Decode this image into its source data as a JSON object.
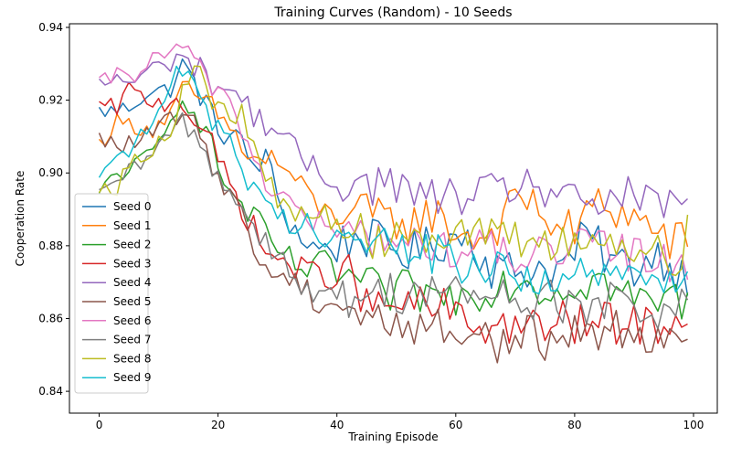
{
  "chart_data": {
    "type": "line",
    "title": "Training Curves (Random) - 10 Seeds",
    "xlabel": "Training Episode",
    "ylabel": "Cooperation Rate",
    "xlim": [
      -5,
      104
    ],
    "ylim": [
      0.834,
      0.941
    ],
    "xticks": [
      0,
      20,
      40,
      60,
      80,
      100
    ],
    "yticks": [
      0.84,
      0.86,
      0.88,
      0.9,
      0.92,
      0.94
    ],
    "xtick_labels": [
      "0",
      "20",
      "40",
      "60",
      "80",
      "100"
    ],
    "ytick_labels": [
      "0.84",
      "0.86",
      "0.88",
      "0.90",
      "0.92",
      "0.94"
    ],
    "grid": false,
    "legend_position": "lower-left",
    "x_start": 0,
    "x_step": 1,
    "series": [
      {
        "name": "Seed 0",
        "color": "#1f77b4",
        "anchors": [
          [
            0,
            0.917
          ],
          [
            2,
            0.917
          ],
          [
            5,
            0.918
          ],
          [
            8,
            0.922
          ],
          [
            12,
            0.923
          ],
          [
            14,
            0.93
          ],
          [
            17,
            0.922
          ],
          [
            20,
            0.912
          ],
          [
            23,
            0.91
          ],
          [
            26,
            0.902
          ],
          [
            28,
            0.904
          ],
          [
            31,
            0.889
          ],
          [
            34,
            0.882
          ],
          [
            37,
            0.879
          ],
          [
            40,
            0.88
          ],
          [
            44,
            0.883
          ],
          [
            48,
            0.88
          ],
          [
            52,
            0.878
          ],
          [
            56,
            0.88
          ],
          [
            59,
            0.882
          ],
          [
            62,
            0.883
          ],
          [
            66,
            0.874
          ],
          [
            70,
            0.873
          ],
          [
            74,
            0.874
          ],
          [
            78,
            0.874
          ],
          [
            82,
            0.883
          ],
          [
            86,
            0.876
          ],
          [
            90,
            0.874
          ],
          [
            94,
            0.878
          ],
          [
            97,
            0.873
          ],
          [
            99,
            0.872
          ]
        ]
      },
      {
        "name": "Seed 1",
        "color": "#ff7f0e",
        "anchors": [
          [
            0,
            0.908
          ],
          [
            3,
            0.914
          ],
          [
            6,
            0.913
          ],
          [
            9,
            0.912
          ],
          [
            12,
            0.916
          ],
          [
            14,
            0.923
          ],
          [
            17,
            0.92
          ],
          [
            20,
            0.916
          ],
          [
            23,
            0.91
          ],
          [
            26,
            0.903
          ],
          [
            29,
            0.904
          ],
          [
            32,
            0.9
          ],
          [
            35,
            0.894
          ],
          [
            38,
            0.889
          ],
          [
            41,
            0.89
          ],
          [
            44,
            0.889
          ],
          [
            48,
            0.887
          ],
          [
            52,
            0.886
          ],
          [
            56,
            0.889
          ],
          [
            60,
            0.884
          ],
          [
            64,
            0.882
          ],
          [
            68,
            0.887
          ],
          [
            71,
            0.894
          ],
          [
            74,
            0.89
          ],
          [
            77,
            0.885
          ],
          [
            80,
            0.884
          ],
          [
            84,
            0.892
          ],
          [
            88,
            0.889
          ],
          [
            92,
            0.886
          ],
          [
            96,
            0.881
          ],
          [
            99,
            0.881
          ]
        ]
      },
      {
        "name": "Seed 2",
        "color": "#2ca02c",
        "anchors": [
          [
            0,
            0.893
          ],
          [
            2,
            0.899
          ],
          [
            5,
            0.901
          ],
          [
            8,
            0.904
          ],
          [
            11,
            0.91
          ],
          [
            14,
            0.922
          ],
          [
            17,
            0.915
          ],
          [
            20,
            0.902
          ],
          [
            23,
            0.892
          ],
          [
            26,
            0.888
          ],
          [
            29,
            0.88
          ],
          [
            32,
            0.876
          ],
          [
            35,
            0.873
          ],
          [
            38,
            0.875
          ],
          [
            41,
            0.872
          ],
          [
            44,
            0.87
          ],
          [
            48,
            0.866
          ],
          [
            52,
            0.868
          ],
          [
            56,
            0.866
          ],
          [
            60,
            0.866
          ],
          [
            64,
            0.868
          ],
          [
            68,
            0.87
          ],
          [
            72,
            0.871
          ],
          [
            76,
            0.867
          ],
          [
            80,
            0.87
          ],
          [
            84,
            0.871
          ],
          [
            88,
            0.867
          ],
          [
            92,
            0.864
          ],
          [
            96,
            0.866
          ],
          [
            99,
            0.864
          ]
        ]
      },
      {
        "name": "Seed 3",
        "color": "#d62728",
        "anchors": [
          [
            0,
            0.918
          ],
          [
            3,
            0.918
          ],
          [
            5,
            0.923
          ],
          [
            8,
            0.92
          ],
          [
            11,
            0.919
          ],
          [
            13,
            0.921
          ],
          [
            16,
            0.915
          ],
          [
            19,
            0.907
          ],
          [
            22,
            0.897
          ],
          [
            25,
            0.888
          ],
          [
            28,
            0.878
          ],
          [
            31,
            0.876
          ],
          [
            34,
            0.873
          ],
          [
            38,
            0.872
          ],
          [
            42,
            0.872
          ],
          [
            46,
            0.862
          ],
          [
            50,
            0.864
          ],
          [
            54,
            0.863
          ],
          [
            58,
            0.863
          ],
          [
            62,
            0.858
          ],
          [
            66,
            0.858
          ],
          [
            70,
            0.858
          ],
          [
            74,
            0.857
          ],
          [
            78,
            0.859
          ],
          [
            82,
            0.858
          ],
          [
            86,
            0.859
          ],
          [
            90,
            0.858
          ],
          [
            94,
            0.859
          ],
          [
            97,
            0.858
          ],
          [
            99,
            0.863
          ]
        ]
      },
      {
        "name": "Seed 4",
        "color": "#9467bd",
        "anchors": [
          [
            0,
            0.924
          ],
          [
            3,
            0.926
          ],
          [
            6,
            0.925
          ],
          [
            9,
            0.929
          ],
          [
            12,
            0.93
          ],
          [
            14,
            0.933
          ],
          [
            17,
            0.928
          ],
          [
            20,
            0.924
          ],
          [
            23,
            0.922
          ],
          [
            26,
            0.916
          ],
          [
            29,
            0.913
          ],
          [
            32,
            0.908
          ],
          [
            35,
            0.902
          ],
          [
            38,
            0.899
          ],
          [
            42,
            0.897
          ],
          [
            46,
            0.897
          ],
          [
            50,
            0.897
          ],
          [
            54,
            0.893
          ],
          [
            58,
            0.893
          ],
          [
            61,
            0.894
          ],
          [
            64,
            0.893
          ],
          [
            68,
            0.895
          ],
          [
            71,
            0.898
          ],
          [
            74,
            0.896
          ],
          [
            77,
            0.894
          ],
          [
            80,
            0.891
          ],
          [
            84,
            0.892
          ],
          [
            88,
            0.894
          ],
          [
            92,
            0.891
          ],
          [
            96,
            0.891
          ],
          [
            99,
            0.893
          ]
        ]
      },
      {
        "name": "Seed 5",
        "color": "#8c564b",
        "anchors": [
          [
            0,
            0.909
          ],
          [
            3,
            0.908
          ],
          [
            6,
            0.908
          ],
          [
            9,
            0.911
          ],
          [
            12,
            0.915
          ],
          [
            14,
            0.916
          ],
          [
            17,
            0.91
          ],
          [
            20,
            0.9
          ],
          [
            23,
            0.893
          ],
          [
            25,
            0.883
          ],
          [
            28,
            0.874
          ],
          [
            31,
            0.871
          ],
          [
            34,
            0.87
          ],
          [
            37,
            0.864
          ],
          [
            40,
            0.865
          ],
          [
            43,
            0.862
          ],
          [
            46,
            0.86
          ],
          [
            49,
            0.859
          ],
          [
            52,
            0.858
          ],
          [
            56,
            0.858
          ],
          [
            60,
            0.856
          ],
          [
            64,
            0.856
          ],
          [
            68,
            0.853
          ],
          [
            72,
            0.855
          ],
          [
            76,
            0.854
          ],
          [
            80,
            0.856
          ],
          [
            84,
            0.857
          ],
          [
            88,
            0.857
          ],
          [
            92,
            0.856
          ],
          [
            96,
            0.858
          ],
          [
            99,
            0.85
          ]
        ]
      },
      {
        "name": "Seed 6",
        "color": "#e377c2",
        "anchors": [
          [
            0,
            0.924
          ],
          [
            3,
            0.927
          ],
          [
            6,
            0.927
          ],
          [
            9,
            0.931
          ],
          [
            12,
            0.933
          ],
          [
            13,
            0.936
          ],
          [
            16,
            0.929
          ],
          [
            19,
            0.925
          ],
          [
            22,
            0.92
          ],
          [
            25,
            0.908
          ],
          [
            28,
            0.898
          ],
          [
            31,
            0.893
          ],
          [
            34,
            0.889
          ],
          [
            37,
            0.886
          ],
          [
            40,
            0.883
          ],
          [
            44,
            0.883
          ],
          [
            48,
            0.882
          ],
          [
            52,
            0.88
          ],
          [
            56,
            0.88
          ],
          [
            60,
            0.879
          ],
          [
            64,
            0.879
          ],
          [
            68,
            0.878
          ],
          [
            72,
            0.878
          ],
          [
            76,
            0.876
          ],
          [
            80,
            0.879
          ],
          [
            84,
            0.88
          ],
          [
            88,
            0.878
          ],
          [
            92,
            0.877
          ],
          [
            96,
            0.876
          ],
          [
            99,
            0.874
          ]
        ]
      },
      {
        "name": "Seed 7",
        "color": "#7f7f7f",
        "anchors": [
          [
            0,
            0.893
          ],
          [
            3,
            0.898
          ],
          [
            6,
            0.901
          ],
          [
            9,
            0.905
          ],
          [
            12,
            0.911
          ],
          [
            14,
            0.915
          ],
          [
            17,
            0.908
          ],
          [
            20,
            0.9
          ],
          [
            23,
            0.892
          ],
          [
            26,
            0.886
          ],
          [
            29,
            0.88
          ],
          [
            32,
            0.874
          ],
          [
            35,
            0.867
          ],
          [
            38,
            0.866
          ],
          [
            41,
            0.865
          ],
          [
            44,
            0.866
          ],
          [
            48,
            0.868
          ],
          [
            52,
            0.867
          ],
          [
            56,
            0.868
          ],
          [
            60,
            0.867
          ],
          [
            64,
            0.866
          ],
          [
            68,
            0.866
          ],
          [
            72,
            0.865
          ],
          [
            76,
            0.865
          ],
          [
            80,
            0.863
          ],
          [
            84,
            0.864
          ],
          [
            88,
            0.864
          ],
          [
            92,
            0.863
          ],
          [
            96,
            0.862
          ],
          [
            99,
            0.864
          ]
        ]
      },
      {
        "name": "Seed 8",
        "color": "#bcbd22",
        "anchors": [
          [
            0,
            0.897
          ],
          [
            3,
            0.896
          ],
          [
            6,
            0.904
          ],
          [
            9,
            0.907
          ],
          [
            12,
            0.912
          ],
          [
            14,
            0.922
          ],
          [
            16,
            0.929
          ],
          [
            19,
            0.921
          ],
          [
            22,
            0.914
          ],
          [
            24,
            0.915
          ],
          [
            27,
            0.904
          ],
          [
            30,
            0.891
          ],
          [
            33,
            0.889
          ],
          [
            36,
            0.889
          ],
          [
            39,
            0.888
          ],
          [
            42,
            0.884
          ],
          [
            46,
            0.882
          ],
          [
            50,
            0.884
          ],
          [
            54,
            0.884
          ],
          [
            58,
            0.884
          ],
          [
            62,
            0.883
          ],
          [
            66,
            0.882
          ],
          [
            70,
            0.881
          ],
          [
            74,
            0.881
          ],
          [
            78,
            0.881
          ],
          [
            82,
            0.882
          ],
          [
            86,
            0.88
          ],
          [
            90,
            0.88
          ],
          [
            94,
            0.879
          ],
          [
            97,
            0.875
          ],
          [
            99,
            0.883
          ]
        ]
      },
      {
        "name": "Seed 9",
        "color": "#17becf",
        "anchors": [
          [
            0,
            0.901
          ],
          [
            3,
            0.904
          ],
          [
            6,
            0.908
          ],
          [
            9,
            0.913
          ],
          [
            12,
            0.922
          ],
          [
            13,
            0.93
          ],
          [
            16,
            0.926
          ],
          [
            19,
            0.915
          ],
          [
            22,
            0.91
          ],
          [
            25,
            0.898
          ],
          [
            28,
            0.89
          ],
          [
            31,
            0.887
          ],
          [
            34,
            0.887
          ],
          [
            37,
            0.884
          ],
          [
            40,
            0.883
          ],
          [
            44,
            0.881
          ],
          [
            48,
            0.88
          ],
          [
            52,
            0.879
          ],
          [
            56,
            0.878
          ],
          [
            60,
            0.876
          ],
          [
            64,
            0.874
          ],
          [
            68,
            0.872
          ],
          [
            72,
            0.872
          ],
          [
            76,
            0.871
          ],
          [
            80,
            0.871
          ],
          [
            84,
            0.872
          ],
          [
            88,
            0.871
          ],
          [
            92,
            0.87
          ],
          [
            96,
            0.87
          ],
          [
            99,
            0.875
          ]
        ]
      }
    ]
  }
}
